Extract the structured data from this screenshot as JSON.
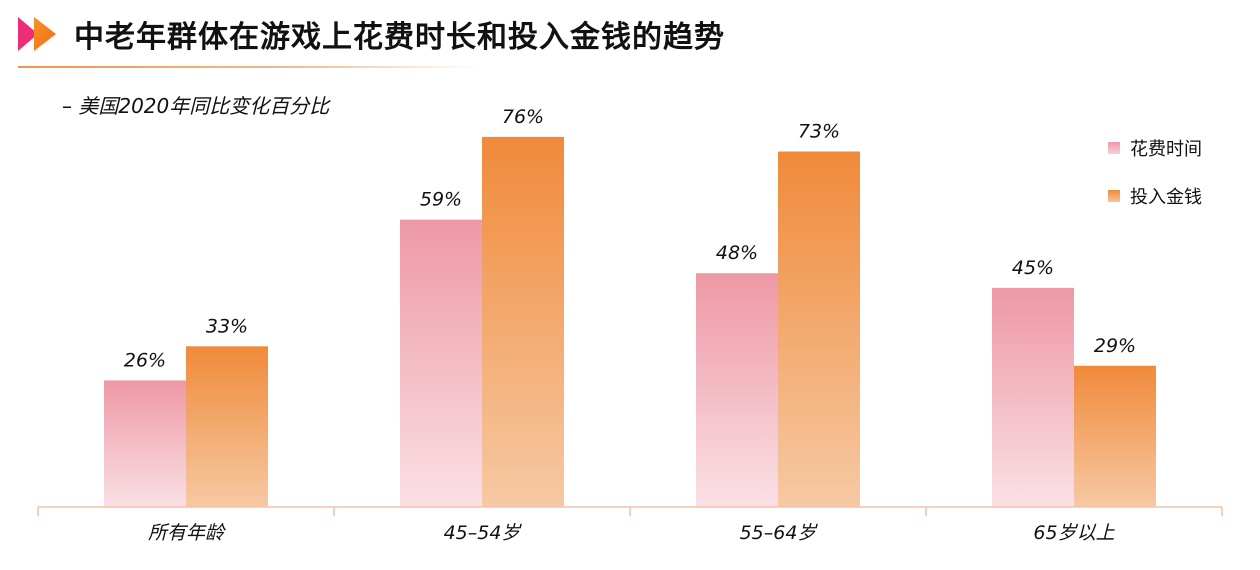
{
  "header": {
    "title": "中老年群体在游戏上花费时长和投入金钱的趋势",
    "subtitle": "– 美国2020年同比变化百分比"
  },
  "colors": {
    "accent": "#f08a3a",
    "series_time_top": "#ee98a5",
    "series_time_bottom": "#fae0e5",
    "series_money_top": "#f08a3a",
    "series_money_bottom": "#f6c9a4"
  },
  "chart_data": {
    "type": "bar",
    "categories": [
      "所有年龄",
      "45–54岁",
      "55–64岁",
      "65岁以上"
    ],
    "series": [
      {
        "name": "花费时间",
        "values": [
          26,
          59,
          48,
          45
        ],
        "labels": [
          "26%",
          "59%",
          "48%",
          "45%"
        ]
      },
      {
        "name": "投入金钱",
        "values": [
          33,
          76,
          73,
          29
        ],
        "labels": [
          "33%",
          "76%",
          "73%",
          "29%"
        ]
      }
    ],
    "ylim": [
      0,
      80
    ],
    "grid": false,
    "legend": "top-right",
    "xlabel": "",
    "ylabel": ""
  }
}
